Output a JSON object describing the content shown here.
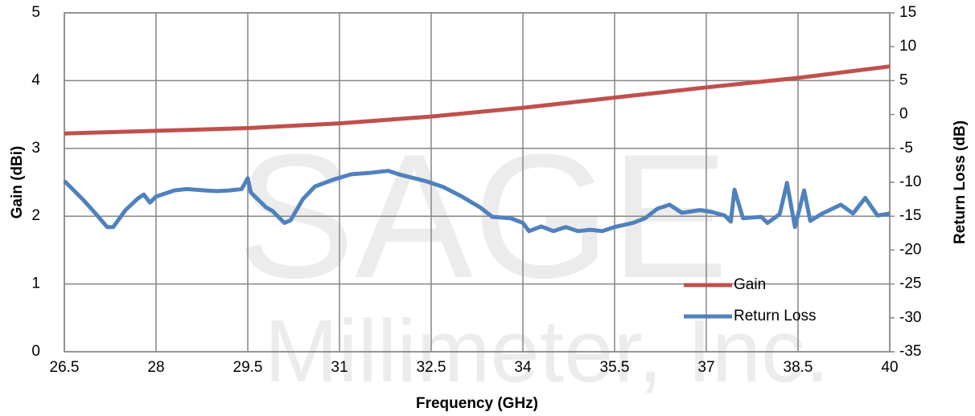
{
  "chart_data": {
    "type": "line",
    "watermark": [
      "SAGE",
      "Millimeter, Inc."
    ],
    "xlabel": "Frequency (GHz)",
    "ylabel": "Gain (dBi)",
    "y2label": "Return Loss (dB)",
    "xlim": [
      26.5,
      40
    ],
    "xticks": [
      26.5,
      28,
      29.5,
      31,
      32.5,
      34,
      35.5,
      37,
      38.5,
      40
    ],
    "ylim": [
      0,
      5
    ],
    "yticks": [
      0,
      1,
      2,
      3,
      4,
      5
    ],
    "y2lim": [
      -35,
      15
    ],
    "y2ticks": [
      -35,
      -30,
      -25,
      -20,
      -15,
      -10,
      -5,
      0,
      5,
      10,
      15
    ],
    "grid": true,
    "legend": "lower right",
    "series": [
      {
        "name": "Gain",
        "color": "#c0504d",
        "axis": "y",
        "x": [
          26.5,
          28,
          29.5,
          31,
          32.5,
          34,
          35.5,
          37,
          38.5,
          40
        ],
        "values": [
          3.22,
          3.26,
          3.3,
          3.37,
          3.47,
          3.6,
          3.75,
          3.9,
          4.04,
          4.21
        ]
      },
      {
        "name": "Return Loss",
        "color": "#4f81bd",
        "axis": "y2",
        "x": [
          26.5,
          26.8,
          27.0,
          27.2,
          27.3,
          27.5,
          27.7,
          27.8,
          27.9,
          28.0,
          28.3,
          28.5,
          28.8,
          29.0,
          29.2,
          29.4,
          29.5,
          29.55,
          29.8,
          29.9,
          30.1,
          30.2,
          30.4,
          30.6,
          30.9,
          31.2,
          31.5,
          31.8,
          32.0,
          32.4,
          32.7,
          33.0,
          33.3,
          33.5,
          33.8,
          34.0,
          34.1,
          34.3,
          34.5,
          34.7,
          34.9,
          35.1,
          35.3,
          35.5,
          35.8,
          36.0,
          36.2,
          36.4,
          36.6,
          36.9,
          37.1,
          37.3,
          37.4,
          37.46,
          37.6,
          37.9,
          38.0,
          38.2,
          38.32,
          38.45,
          38.6,
          38.7,
          38.9,
          39.2,
          39.4,
          39.6,
          39.8,
          40.0
        ],
        "values": [
          -9.8,
          -12.5,
          -14.5,
          -16.6,
          -16.6,
          -14.1,
          -12.4,
          -11.8,
          -13,
          -12.1,
          -11.2,
          -11,
          -11.2,
          -11.3,
          -11.2,
          -11,
          -9.4,
          -11.5,
          -13.7,
          -14.2,
          -16,
          -15.6,
          -12.5,
          -10.6,
          -9.6,
          -8.8,
          -8.6,
          -8.3,
          -8.9,
          -9.8,
          -10.7,
          -12.1,
          -13.7,
          -15.1,
          -15.3,
          -16,
          -17.2,
          -16.5,
          -17.2,
          -16.6,
          -17.2,
          -17,
          -17.2,
          -16.6,
          -16,
          -15.3,
          -13.9,
          -13.3,
          -14.5,
          -14.1,
          -14.4,
          -14.9,
          -15.8,
          -11.1,
          -15.3,
          -15.1,
          -16,
          -14.7,
          -10.1,
          -16.6,
          -11.2,
          -15.7,
          -14.6,
          -13.3,
          -14.6,
          -12.3,
          -14.9,
          -14.6
        ]
      }
    ]
  }
}
